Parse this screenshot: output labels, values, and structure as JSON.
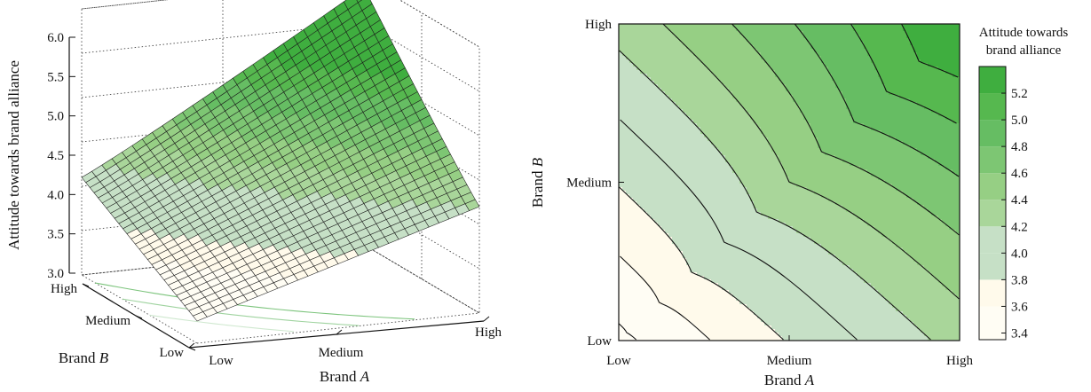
{
  "chart_data": [
    {
      "type": "surface",
      "zlabel": "Attitude towards brand alliance",
      "xlabel_prefix": "Brand ",
      "xlabel_var": "A",
      "ylabel_prefix": "Brand ",
      "ylabel_var": "B",
      "x_categories": [
        "Low",
        "Medium",
        "High"
      ],
      "y_categories": [
        "Low",
        "Medium",
        "High"
      ],
      "z_ticks": [
        "3.0",
        "3.5",
        "4.0",
        "4.5",
        "5.0",
        "5.5",
        "6.0"
      ],
      "zlim": [
        3.0,
        6.0
      ],
      "grid": true,
      "corner_values": {
        "low_low": 3.25,
        "high_low": 4.2,
        "low_high": 4.1,
        "high_high": 5.9
      }
    },
    {
      "type": "contour",
      "xlabel_prefix": "Brand ",
      "xlabel_var": "A",
      "ylabel_prefix": "Brand ",
      "ylabel_var": "B",
      "x_categories": [
        "Low",
        "Medium",
        "High"
      ],
      "y_categories": [
        "Low",
        "Medium",
        "High"
      ],
      "levels": [
        3.4,
        3.6,
        3.8,
        4.0,
        4.2,
        4.4,
        4.6,
        4.8,
        5.0,
        5.2
      ],
      "colorbar_title_line1": "Attitude towards",
      "colorbar_title_line2": "brand alliance",
      "colorbar_ticks": [
        "3.4",
        "3.6",
        "3.8",
        "4.0",
        "4.2",
        "4.4",
        "4.6",
        "4.8",
        "5.0",
        "5.2"
      ],
      "colors": [
        "#fffdf4",
        "#fffaeb",
        "#c6e0c6",
        "#c6e0c6",
        "#a9d69a",
        "#96cf84",
        "#7dc673",
        "#66bd63",
        "#56b84f",
        "#3fae3f"
      ],
      "legend_placement": "right"
    }
  ]
}
